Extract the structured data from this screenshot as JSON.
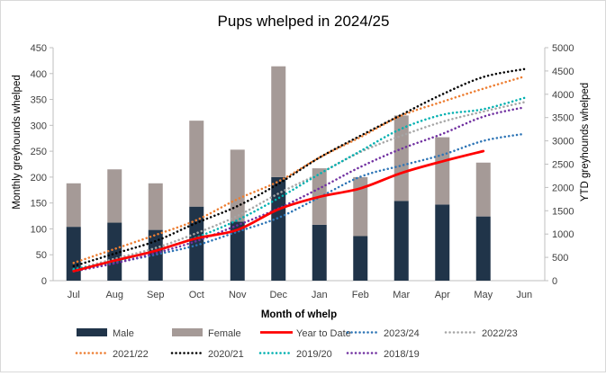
{
  "chart_data": {
    "type": "bar",
    "title": "Pups whelped in 2024/25",
    "xlabel": "Month of whelp",
    "ylabel": "Monthly greyhounds whelped",
    "y2label": "YTD greyhounds whelped",
    "categories": [
      "Jul",
      "Aug",
      "Sep",
      "Oct",
      "Nov",
      "Dec",
      "Jan",
      "Feb",
      "Mar",
      "Apr",
      "May",
      "Jun"
    ],
    "ylim": [
      0,
      450
    ],
    "yticks": [
      0,
      50,
      100,
      150,
      200,
      250,
      300,
      350,
      400,
      450
    ],
    "y2lim": [
      0,
      5000
    ],
    "y2ticks": [
      0,
      500,
      1000,
      1500,
      2000,
      2500,
      3000,
      3500,
      4000,
      4500,
      5000
    ],
    "stacked": true,
    "bar_series": [
      {
        "name": "Male",
        "color": "#203449",
        "values": [
          104,
          112,
          98,
          143,
          114,
          200,
          108,
          86,
          154,
          147,
          124,
          null
        ]
      },
      {
        "name": "Female",
        "color": "#a59a97",
        "values": [
          84,
          103,
          90,
          166,
          139,
          214,
          109,
          114,
          165,
          130,
          104,
          null
        ]
      }
    ],
    "line_series": [
      {
        "name": "Year to Date",
        "color": "#ff0000",
        "style": "solid",
        "values": [
          205,
          430,
          640,
          910,
          1090,
          1530,
          1800,
          1980,
          2310,
          2560,
          2780,
          null
        ]
      },
      {
        "name": "2023/24",
        "color": "#2e75b6",
        "style": "dotted",
        "values": [
          200,
          380,
          560,
          760,
          1050,
          1350,
          1790,
          2230,
          2470,
          2700,
          3000,
          3150
        ]
      },
      {
        "name": "2022/23",
        "color": "#a6a6a6",
        "style": "dotted",
        "values": [
          230,
          470,
          700,
          1020,
          1390,
          1870,
          2300,
          2760,
          3110,
          3410,
          3630,
          3830
        ]
      },
      {
        "name": "2021/22",
        "color": "#ed7d31",
        "style": "dotted",
        "values": [
          380,
          680,
          980,
          1300,
          1750,
          2130,
          2640,
          3080,
          3540,
          3840,
          4120,
          4380
        ]
      },
      {
        "name": "2020/21",
        "color": "#000000",
        "style": "dotted",
        "values": [
          310,
          580,
          850,
          1240,
          1600,
          2080,
          2640,
          3110,
          3560,
          4000,
          4370,
          4540
        ]
      },
      {
        "name": "2019/20",
        "color": "#00b0b0",
        "style": "dotted",
        "values": [
          250,
          410,
          650,
          930,
          1300,
          1770,
          2290,
          2780,
          3260,
          3560,
          3680,
          3920
        ]
      },
      {
        "name": "2018/19",
        "color": "#7030a0",
        "style": "dotted",
        "values": [
          200,
          370,
          590,
          850,
          1190,
          1550,
          1980,
          2440,
          2830,
          3150,
          3520,
          3720
        ]
      }
    ],
    "legend_order": [
      "Male",
      "Female",
      "Year to Date",
      "2023/24",
      "2022/23",
      "2021/22",
      "2020/21",
      "2019/20",
      "2018/19"
    ],
    "legend": "bottom",
    "grid": false
  }
}
